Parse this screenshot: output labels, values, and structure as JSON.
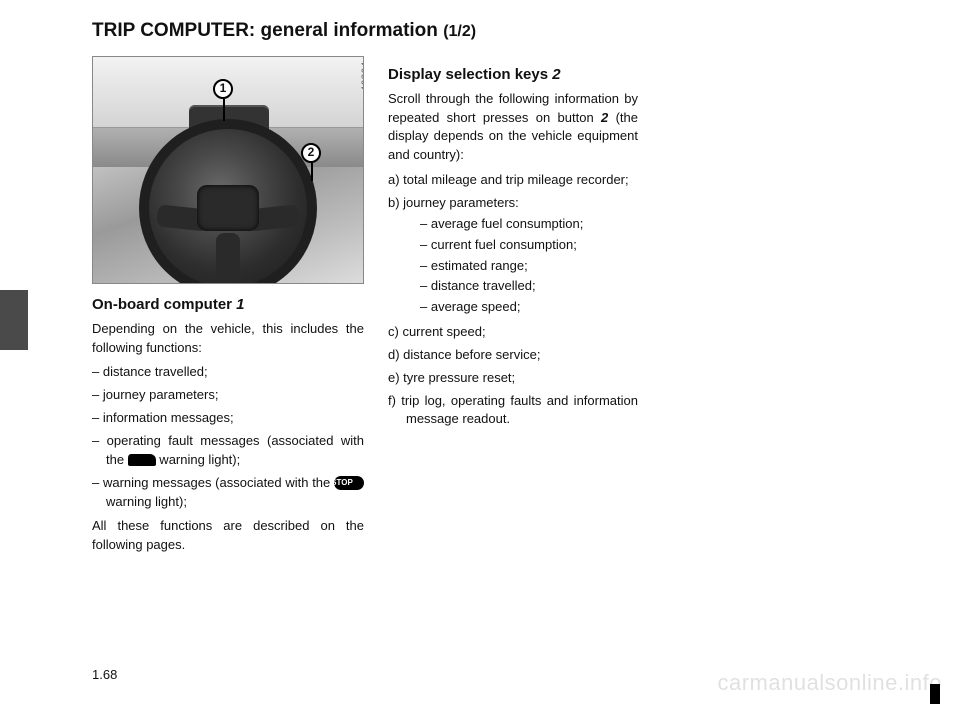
{
  "title_main": "TRIP COMPUTER:  general information ",
  "title_sub": "(1/2)",
  "photo": {
    "id": "40894",
    "callout1": "1",
    "callout2": "2"
  },
  "left": {
    "heading": "On-board computer ",
    "heading_ref": "1",
    "intro": "Depending on the vehicle, this includes the following functions:",
    "items": [
      "distance travelled;",
      "journey parameters;",
      "information messages;"
    ],
    "item_fault_pre": "operating fault messages (associated with the ",
    "item_fault_post": " warning light);",
    "item_warn_pre": "warning messages (associated with the ",
    "item_warn_post": " warning light);",
    "stop_label": "STOP",
    "outro": "All these functions are described on the following pages."
  },
  "right": {
    "heading": "Display selection keys ",
    "heading_ref": "2",
    "intro_a": "Scroll through the following information by repeated short presses on button ",
    "intro_ref": "2",
    "intro_b": " (the display depends on the vehicle equipment and country):",
    "a": "total mileage and trip mileage recorder;",
    "b_label": "journey parameters:",
    "b_items": [
      "average fuel consumption;",
      "current fuel consumption;",
      "estimated range;",
      "distance travelled;",
      "average speed;"
    ],
    "c": "current speed;",
    "d": "distance before service;",
    "e": "tyre pressure reset;",
    "f": "trip log, operating faults and information message readout."
  },
  "page_number": "1.68",
  "watermark": "carmanualsonline.info"
}
